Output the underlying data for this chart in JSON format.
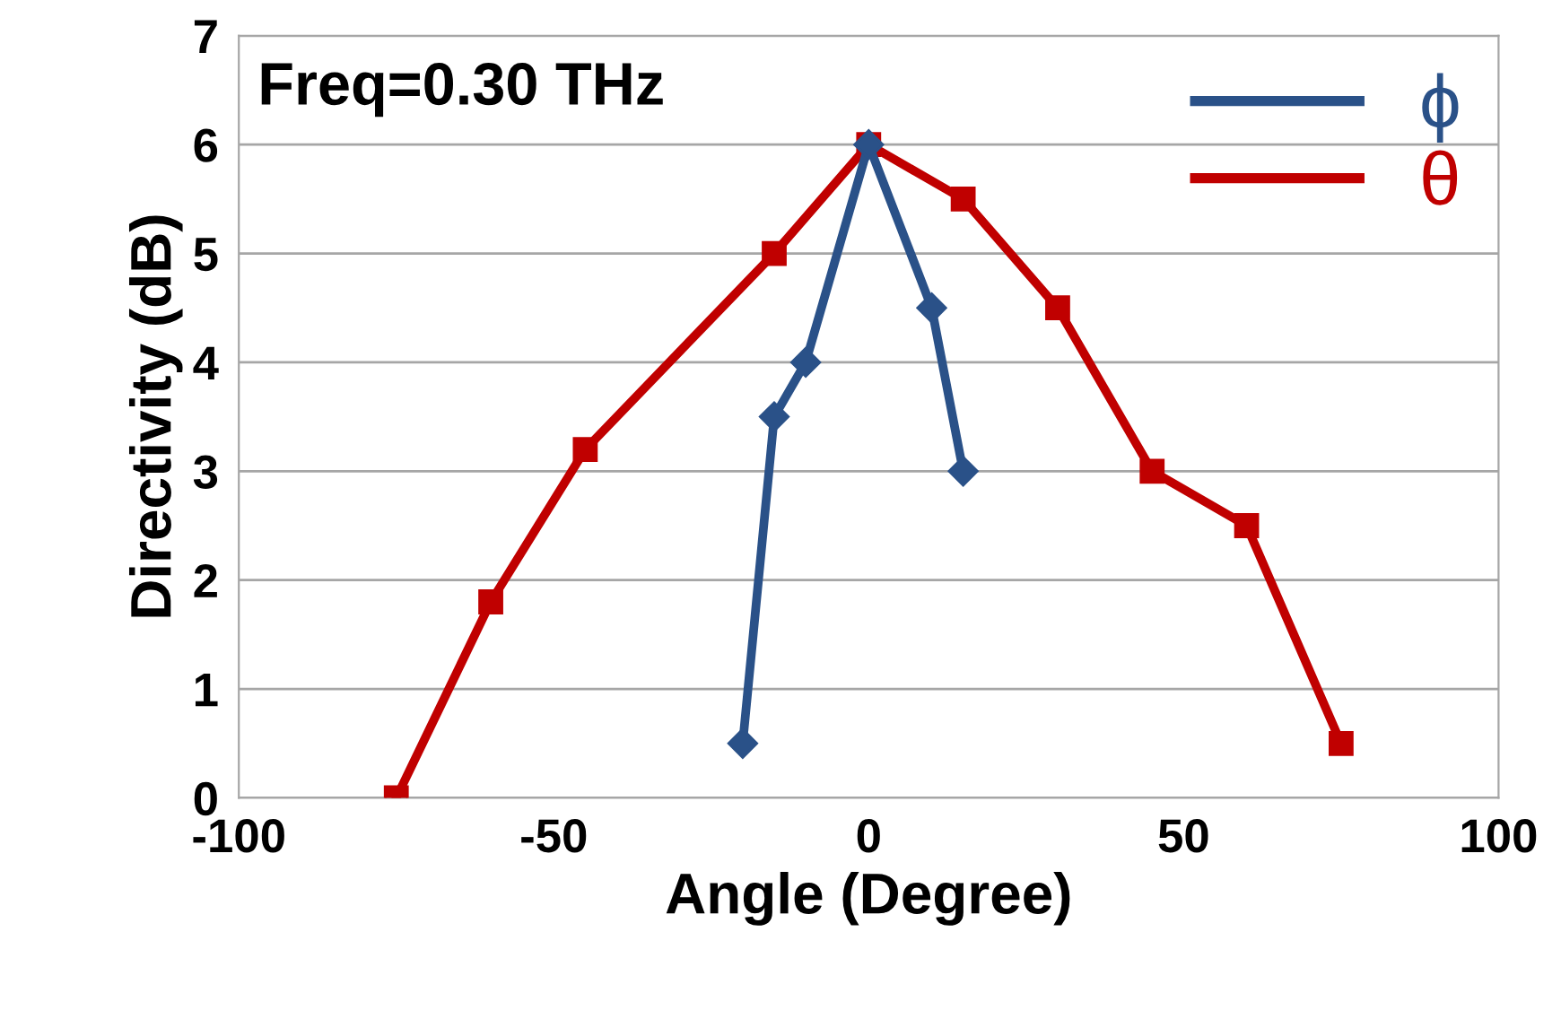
{
  "chart_data": {
    "type": "line",
    "xlabel": "Angle (Degree)",
    "ylabel": "Directivity (dB)",
    "annotations": [
      "Freq=0.30 THz"
    ],
    "series": [
      {
        "name": "ϕ",
        "color": "#2a5188",
        "marker": "diamond",
        "x": [
          -20,
          -15,
          -10,
          0,
          10,
          15
        ],
        "values": [
          0.5,
          3.5,
          4,
          6,
          4.5,
          3
        ]
      },
      {
        "name": "θ",
        "color": "#c00000",
        "marker": "square",
        "x": [
          -75,
          -60,
          -45,
          -15,
          0,
          15,
          30,
          45,
          60,
          75
        ],
        "values": [
          0,
          1.8,
          3.2,
          5,
          6,
          5.5,
          4.5,
          3,
          2.5,
          0.5
        ]
      }
    ],
    "xlim": [
      -100,
      100
    ],
    "xticks": [
      -100,
      -50,
      0,
      50,
      100
    ],
    "ylim": [
      0,
      7
    ],
    "yticks": [
      0,
      1,
      2,
      3,
      4,
      5,
      6,
      7
    ],
    "grid": "y",
    "legend": "top right",
    "line_style": "solid"
  }
}
